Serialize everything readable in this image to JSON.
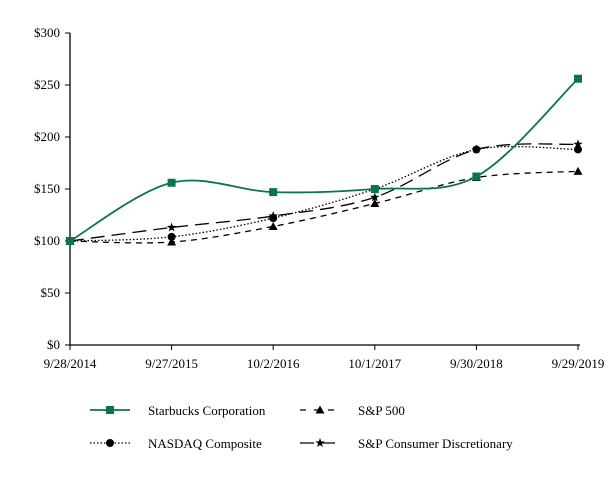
{
  "chart_data": {
    "type": "line",
    "title": "",
    "xlabel": "",
    "ylabel": "",
    "categories": [
      "9/28/2014",
      "9/27/2015",
      "10/2/2016",
      "10/1/2017",
      "9/30/2018",
      "9/29/2019"
    ],
    "ylim": [
      0,
      300
    ],
    "yticks": [
      0,
      50,
      100,
      150,
      200,
      250,
      300
    ],
    "ytick_labels": [
      "$0",
      "$50",
      "$100",
      "$150",
      "$200",
      "$250",
      "$300"
    ],
    "grid": false,
    "legend": "bottom",
    "series": [
      {
        "name": "Starbucks Corporation",
        "values": [
          100,
          156,
          147,
          150,
          162,
          256
        ],
        "color": "#0a7450",
        "style": "solid",
        "marker": "square"
      },
      {
        "name": "S&P 500",
        "values": [
          100,
          99,
          114,
          136,
          161,
          167
        ],
        "color": "#000000",
        "style": "dashed",
        "marker": "triangle"
      },
      {
        "name": "NASDAQ Composite",
        "values": [
          100,
          104,
          122,
          150,
          188,
          188
        ],
        "color": "#000000",
        "style": "dotted",
        "marker": "circle"
      },
      {
        "name": "S&P Consumer Discretionary",
        "values": [
          100,
          113,
          124,
          142,
          188,
          193
        ],
        "color": "#000000",
        "style": "longdash",
        "marker": "star"
      }
    ]
  }
}
